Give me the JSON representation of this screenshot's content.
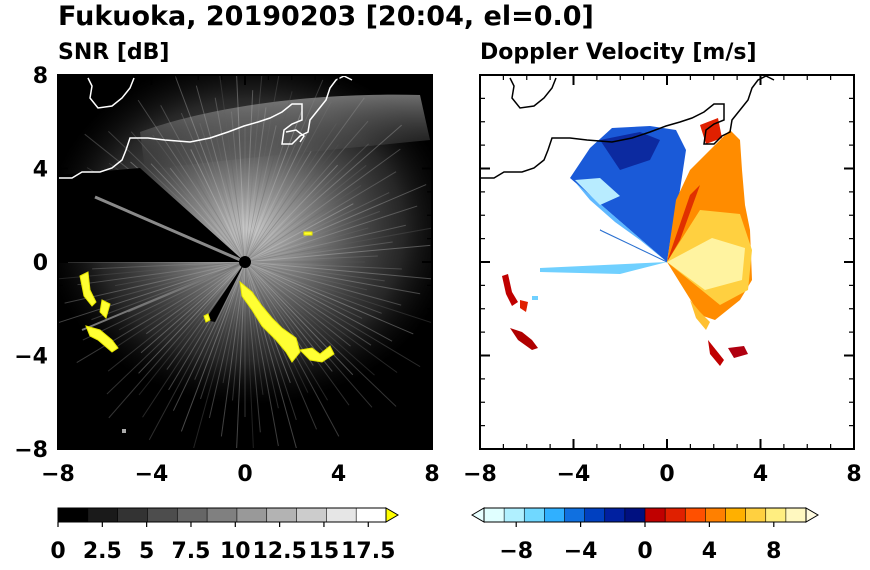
{
  "figure": {
    "title": "Fukuoka, 20190203 [20:04, el=0.0]"
  },
  "chart_data": [
    {
      "type": "heatmap",
      "title": "SNR [dB]",
      "xlabel": "",
      "ylabel": "",
      "xlim": [
        -8,
        8
      ],
      "ylim": [
        -8,
        8
      ],
      "x_ticks": [
        "−8",
        "−4",
        "0",
        "4",
        "8"
      ],
      "y_ticks": [
        "8",
        "4",
        "0",
        "−4",
        "−8"
      ],
      "colorbar": {
        "range": [
          0,
          18.5
        ],
        "extend": "max",
        "tick_labels": [
          "0",
          "2.5",
          "5",
          "7.5",
          "10",
          "12.5",
          "15",
          "17.5"
        ],
        "tick_values": [
          0,
          2.5,
          5,
          7.5,
          10,
          12.5,
          15,
          17.5
        ],
        "colors": [
          "#000000",
          "#1a1a1a",
          "#333333",
          "#4d4d4d",
          "#666666",
          "#808080",
          "#999999",
          "#b3b3b3",
          "#cccccc",
          "#e6e6e6",
          "#ffffff"
        ],
        "over_color": "#ffff00"
      },
      "background_color": "#000000",
      "notes_visible": "radar SNR field with coastline overlay; bright yellow echoes in lower-left and lower-right"
    },
    {
      "type": "heatmap",
      "title": "Doppler Velocity [m/s]",
      "xlabel": "",
      "ylabel": "",
      "xlim": [
        -8,
        8
      ],
      "ylim": [
        -8,
        8
      ],
      "x_ticks": [
        "−8",
        "−4",
        "0",
        "4",
        "8"
      ],
      "y_ticks": [],
      "colorbar": {
        "range": [
          -10,
          10
        ],
        "extend": "both",
        "tick_labels": [
          "−8",
          "−4",
          "0",
          "4",
          "8"
        ],
        "tick_values": [
          -8,
          -4,
          0,
          4,
          8
        ],
        "colors": [
          "#e0ffff",
          "#b0f0ff",
          "#70d8ff",
          "#30b0ff",
          "#1070e0",
          "#0040c0",
          "#0020a0",
          "#001080",
          "#c00000",
          "#e02000",
          "#ff5000",
          "#ff8000",
          "#ffb000",
          "#ffd040",
          "#ffee80",
          "#fff8c0"
        ],
        "under_color": "#e8ffff",
        "over_color": "#fffbe0"
      },
      "background_color": "#ffffff"
    }
  ],
  "colors": {
    "coast_on_dark": "#ffffff",
    "coast_on_light": "#000000",
    "yellow_echo": "#ffff33"
  }
}
